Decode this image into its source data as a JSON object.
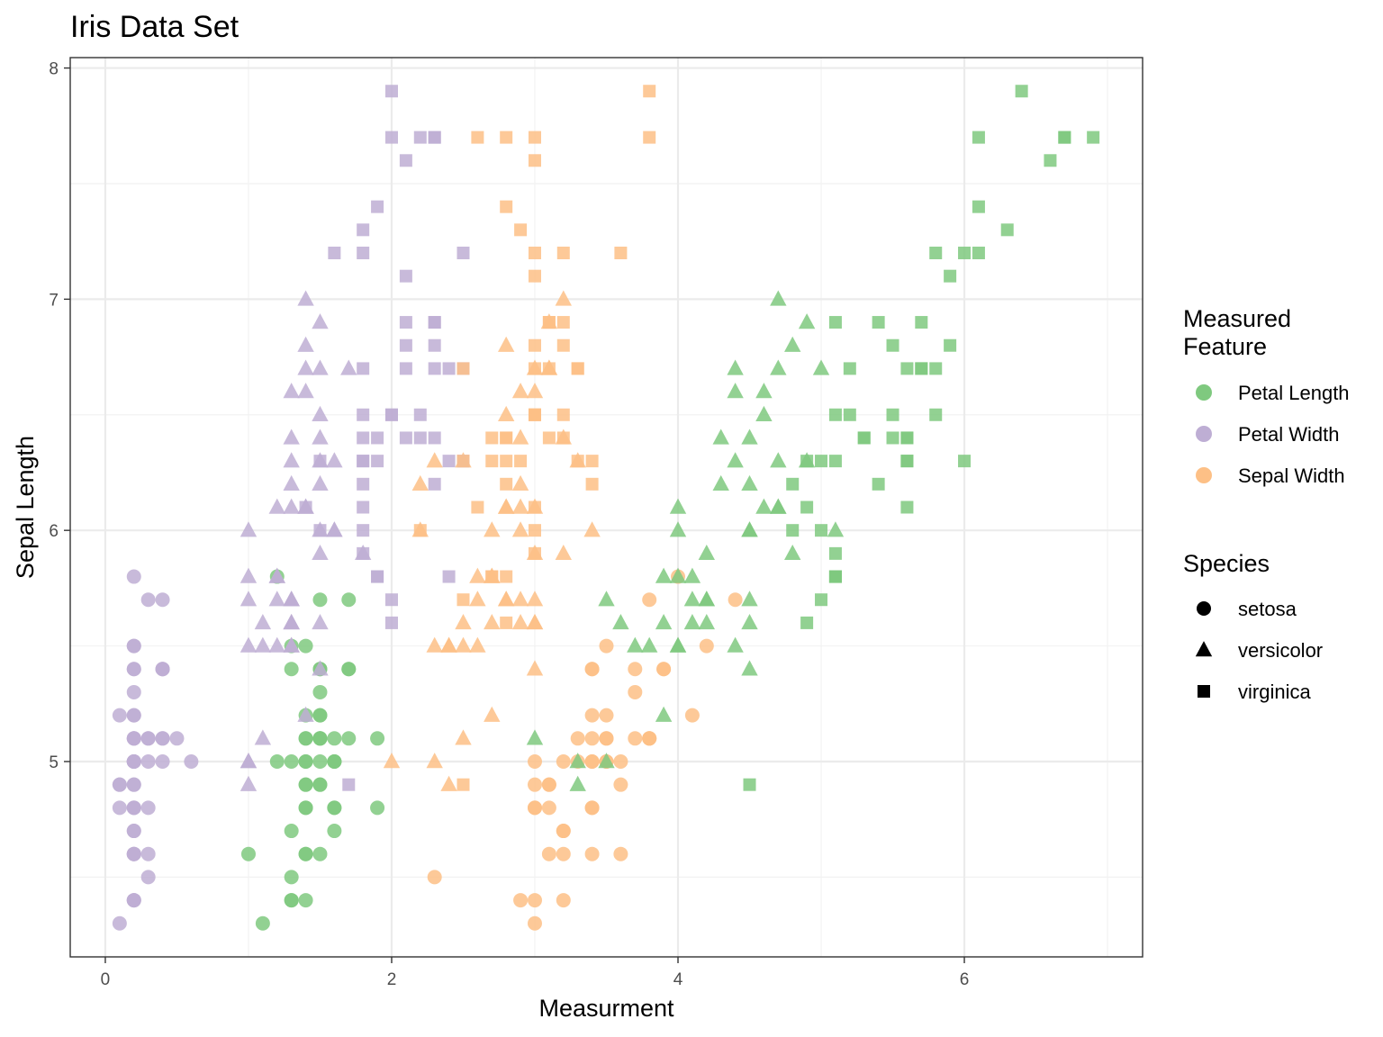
{
  "chart_data": {
    "type": "scatter",
    "title": "Iris Data Set",
    "xlabel": "Measurment",
    "ylabel": "Sepal Length",
    "xlim": [
      -0.245,
      7.245
    ],
    "ylim": [
      4.155,
      8.045
    ],
    "x_ticks": [
      0,
      2,
      4,
      6
    ],
    "x_tick_labels": [
      "0",
      "2",
      "4",
      "6"
    ],
    "y_ticks": [
      5,
      6,
      7,
      8
    ],
    "y_tick_labels": [
      "5",
      "6",
      "7",
      "8"
    ],
    "grid": true,
    "legend_position": "right",
    "color_legend": {
      "title_lines": [
        "Measured",
        " Feature"
      ],
      "entries": [
        {
          "label": "Petal Length",
          "color": "#7fc97f"
        },
        {
          "label": "Petal Width",
          "color": "#beaed4"
        },
        {
          "label": "Sepal Width",
          "color": "#fdc086"
        }
      ]
    },
    "shape_legend": {
      "title": "Species",
      "entries": [
        {
          "label": "setosa",
          "shape": "circle"
        },
        {
          "label": "versicolor",
          "shape": "triangle"
        },
        {
          "label": "virginica",
          "shape": "square"
        }
      ]
    },
    "sepal_length": [
      5.1,
      4.9,
      4.7,
      4.6,
      5.0,
      5.4,
      4.6,
      5.0,
      4.4,
      4.9,
      5.4,
      4.8,
      4.8,
      4.3,
      5.8,
      5.7,
      5.4,
      5.1,
      5.7,
      5.1,
      5.4,
      5.1,
      4.6,
      5.1,
      4.8,
      5.0,
      5.0,
      5.2,
      5.2,
      4.7,
      4.8,
      5.4,
      5.2,
      5.5,
      4.9,
      5.0,
      5.5,
      4.9,
      4.4,
      5.1,
      5.0,
      4.5,
      4.4,
      5.0,
      5.1,
      4.8,
      5.1,
      4.6,
      5.3,
      5.0,
      7.0,
      6.4,
      6.9,
      5.5,
      6.5,
      5.7,
      6.3,
      4.9,
      6.6,
      5.2,
      5.0,
      5.9,
      6.0,
      6.1,
      5.6,
      6.7,
      5.6,
      5.8,
      6.2,
      5.6,
      5.9,
      6.1,
      6.3,
      6.1,
      6.4,
      6.6,
      6.8,
      6.7,
      6.0,
      5.7,
      5.5,
      5.5,
      5.8,
      6.0,
      5.4,
      6.0,
      6.7,
      6.3,
      5.6,
      5.5,
      5.5,
      6.1,
      5.8,
      5.0,
      5.6,
      5.7,
      5.7,
      6.2,
      5.1,
      5.7,
      6.3,
      5.8,
      7.1,
      6.3,
      6.5,
      7.6,
      4.9,
      7.3,
      6.7,
      7.2,
      6.5,
      6.4,
      6.8,
      5.7,
      5.8,
      6.4,
      6.5,
      7.7,
      7.7,
      6.0,
      6.9,
      5.6,
      7.7,
      6.3,
      6.7,
      7.2,
      6.2,
      6.1,
      6.4,
      7.2,
      7.4,
      7.9,
      6.4,
      6.3,
      6.1,
      7.7,
      6.3,
      6.4,
      6.0,
      6.9,
      6.7,
      6.9,
      5.8,
      6.8,
      6.7,
      6.7,
      6.3,
      6.5,
      6.2,
      5.9
    ],
    "sepal_width": [
      3.5,
      3.0,
      3.2,
      3.1,
      3.6,
      3.9,
      3.4,
      3.4,
      2.9,
      3.1,
      3.7,
      3.4,
      3.0,
      3.0,
      4.0,
      4.4,
      3.9,
      3.5,
      3.8,
      3.8,
      3.4,
      3.7,
      3.6,
      3.3,
      3.4,
      3.0,
      3.4,
      3.5,
      3.4,
      3.2,
      3.1,
      3.4,
      4.1,
      4.2,
      3.1,
      3.2,
      3.5,
      3.6,
      3.0,
      3.4,
      3.5,
      2.3,
      3.2,
      3.5,
      3.8,
      3.0,
      3.8,
      3.2,
      3.7,
      3.3,
      3.2,
      3.2,
      3.1,
      2.3,
      2.8,
      2.8,
      3.3,
      2.4,
      2.9,
      2.7,
      2.0,
      3.0,
      2.2,
      2.9,
      2.9,
      3.1,
      3.0,
      2.7,
      2.2,
      2.5,
      3.2,
      2.8,
      2.5,
      2.8,
      2.9,
      3.0,
      2.8,
      3.0,
      2.9,
      2.6,
      2.4,
      2.4,
      2.7,
      2.7,
      3.0,
      3.4,
      3.1,
      2.3,
      3.0,
      2.5,
      2.6,
      3.0,
      2.6,
      2.3,
      2.7,
      3.0,
      2.9,
      2.9,
      2.5,
      2.8,
      3.3,
      2.7,
      3.0,
      2.9,
      3.0,
      3.0,
      2.5,
      2.9,
      2.5,
      3.6,
      3.2,
      2.7,
      3.0,
      2.5,
      2.8,
      3.2,
      3.0,
      3.8,
      2.6,
      2.2,
      3.2,
      2.8,
      2.8,
      2.7,
      3.3,
      3.2,
      2.8,
      3.0,
      2.8,
      3.0,
      2.8,
      3.8,
      2.8,
      2.8,
      2.6,
      3.0,
      3.4,
      3.1,
      3.0,
      3.1,
      3.1,
      3.1,
      2.7,
      3.2,
      3.3,
      3.0,
      2.5,
      3.0,
      3.4,
      3.0
    ],
    "petal_length": [
      1.4,
      1.4,
      1.3,
      1.5,
      1.4,
      1.7,
      1.4,
      1.5,
      1.4,
      1.5,
      1.5,
      1.6,
      1.4,
      1.1,
      1.2,
      1.5,
      1.3,
      1.4,
      1.7,
      1.5,
      1.7,
      1.5,
      1.0,
      1.7,
      1.9,
      1.6,
      1.6,
      1.5,
      1.4,
      1.6,
      1.6,
      1.5,
      1.5,
      1.4,
      1.5,
      1.2,
      1.3,
      1.4,
      1.3,
      1.5,
      1.3,
      1.3,
      1.3,
      1.6,
      1.9,
      1.4,
      1.6,
      1.4,
      1.5,
      1.4,
      4.7,
      4.5,
      4.9,
      4.0,
      4.6,
      4.5,
      4.7,
      3.3,
      4.6,
      3.9,
      3.5,
      4.2,
      4.0,
      4.7,
      3.6,
      4.4,
      4.5,
      4.1,
      4.5,
      3.9,
      4.8,
      4.0,
      4.9,
      4.7,
      4.3,
      4.4,
      4.8,
      5.0,
      4.5,
      3.5,
      3.8,
      3.7,
      3.9,
      5.1,
      4.5,
      4.5,
      4.7,
      4.4,
      4.1,
      4.0,
      4.4,
      4.6,
      4.0,
      3.3,
      4.2,
      4.2,
      4.2,
      4.3,
      3.0,
      4.1,
      6.0,
      5.1,
      5.9,
      5.6,
      5.8,
      6.6,
      4.5,
      6.3,
      5.8,
      6.1,
      5.1,
      5.3,
      5.5,
      5.0,
      5.1,
      5.3,
      5.5,
      6.7,
      6.9,
      5.0,
      5.7,
      4.9,
      6.7,
      4.9,
      5.7,
      6.0,
      4.8,
      4.9,
      5.6,
      5.8,
      6.1,
      6.4,
      5.6,
      5.1,
      5.6,
      6.1,
      5.6,
      5.5,
      4.8,
      5.4,
      5.6,
      5.1,
      5.1,
      5.9,
      5.7,
      5.2,
      5.0,
      5.2,
      5.4,
      5.1
    ],
    "petal_width": [
      0.2,
      0.2,
      0.2,
      0.2,
      0.2,
      0.4,
      0.3,
      0.2,
      0.2,
      0.1,
      0.2,
      0.2,
      0.1,
      0.1,
      0.2,
      0.4,
      0.4,
      0.3,
      0.3,
      0.3,
      0.2,
      0.4,
      0.2,
      0.5,
      0.2,
      0.2,
      0.4,
      0.2,
      0.2,
      0.2,
      0.2,
      0.4,
      0.1,
      0.2,
      0.2,
      0.2,
      0.2,
      0.1,
      0.2,
      0.2,
      0.3,
      0.3,
      0.2,
      0.6,
      0.4,
      0.3,
      0.2,
      0.2,
      0.2,
      0.2,
      1.4,
      1.5,
      1.5,
      1.3,
      1.5,
      1.3,
      1.6,
      1.0,
      1.3,
      1.4,
      1.0,
      1.5,
      1.0,
      1.4,
      1.3,
      1.4,
      1.5,
      1.0,
      1.5,
      1.1,
      1.8,
      1.3,
      1.5,
      1.2,
      1.3,
      1.4,
      1.4,
      1.7,
      1.5,
      1.0,
      1.1,
      1.0,
      1.2,
      1.6,
      1.5,
      1.6,
      1.5,
      1.3,
      1.3,
      1.3,
      1.2,
      1.4,
      1.2,
      1.0,
      1.3,
      1.2,
      1.3,
      1.3,
      1.1,
      1.3,
      2.5,
      1.9,
      2.1,
      1.8,
      2.2,
      2.1,
      1.7,
      1.8,
      1.8,
      2.5,
      2.0,
      1.9,
      2.1,
      2.0,
      2.4,
      2.3,
      1.8,
      2.2,
      2.3,
      1.5,
      2.3,
      2.0,
      2.0,
      1.8,
      2.1,
      1.8,
      1.8,
      1.8,
      2.1,
      1.6,
      1.9,
      2.0,
      2.2,
      1.5,
      1.4,
      2.3,
      2.4,
      1.8,
      1.8,
      2.1,
      2.4,
      2.3,
      1.9,
      2.3,
      2.5,
      2.3,
      1.9,
      2.0,
      2.3,
      1.8
    ],
    "species_groups": [
      {
        "name": "setosa",
        "start": 0,
        "end": 50
      },
      {
        "name": "versicolor",
        "start": 50,
        "end": 100
      },
      {
        "name": "virginica",
        "start": 100,
        "end": 150
      }
    ]
  }
}
